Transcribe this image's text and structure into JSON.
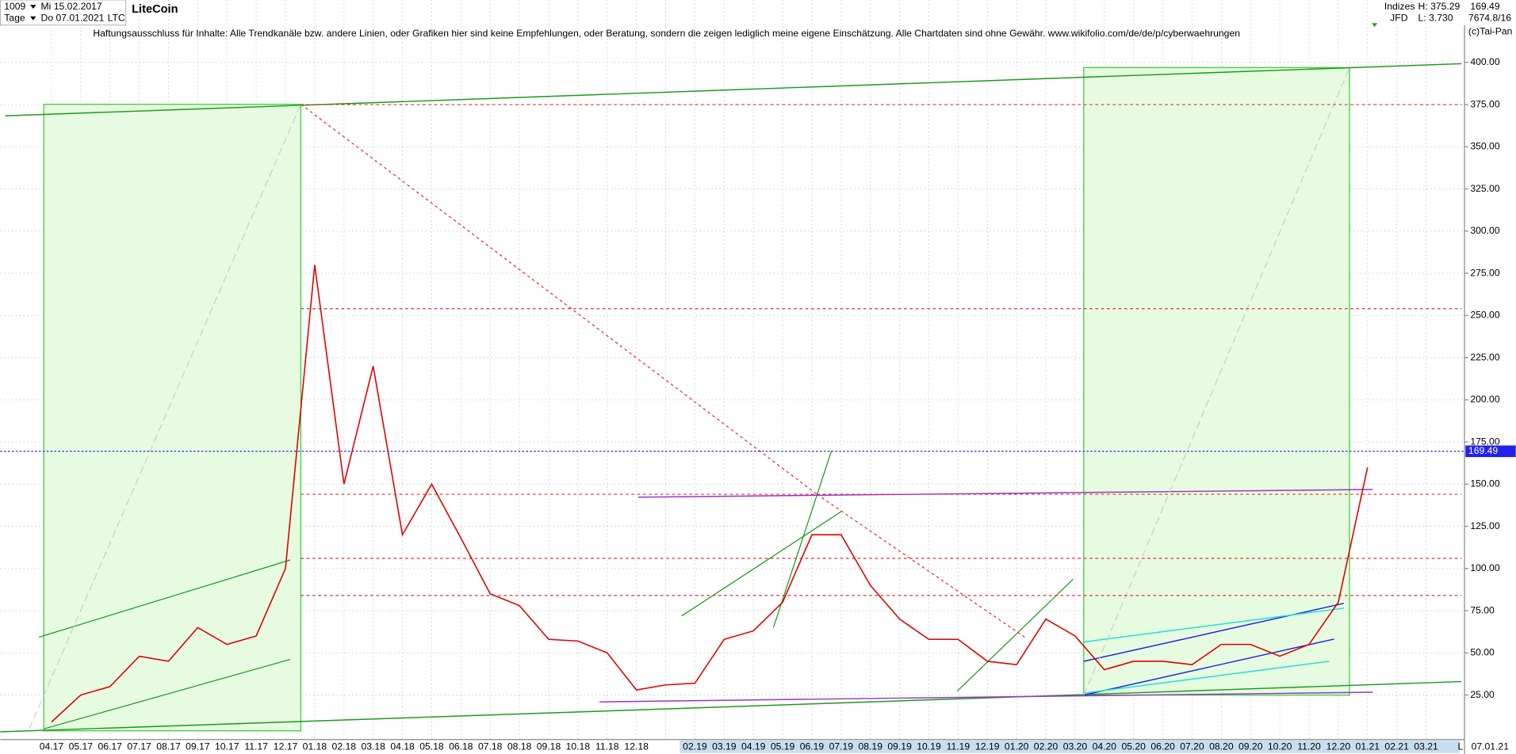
{
  "header": {
    "count": "1009",
    "period": "Tage",
    "start_date": "Mi 15.02.2017",
    "end_date": "Do 07.01.2021",
    "symbol": "LTC",
    "name": "LiteCoin",
    "disclaimer": "Haftungsausschluss für Inhalte: Alle Trendkanäle bzw. andere Linien, oder Grafiken hier sind keine Empfehlungen, oder Beratung, sondern die zeigen lediglich meine eigene Einschätzung. Alle Chartdaten sind ohne Gewähr.  www.wikifolio.com/de/de/p/cyberwaehrungen",
    "index_group": "Indizes",
    "source": "JFD",
    "high": "H: 375.29",
    "low": "L: 3.730",
    "last": "169.49",
    "info": "7674.8/16",
    "copyright": "(c)Tai-Pan",
    "scale_mode": "L",
    "last_date": "07.01.21"
  },
  "chart_data": {
    "type": "line",
    "categories": [
      "04.17",
      "05.17",
      "06.17",
      "07.17",
      "08.17",
      "09.17",
      "10.17",
      "11.17",
      "12.17",
      "01.18",
      "02.18",
      "03.18",
      "04.18",
      "05.18",
      "06.18",
      "07.18",
      "08.18",
      "09.18",
      "10.18",
      "11.18",
      "12.18",
      null,
      "02.19",
      "03.19",
      "04.19",
      "05.19",
      "06.19",
      "07.19",
      "08.19",
      "09.19",
      "10.19",
      "11.19",
      "12.19",
      "01.20",
      "02.20",
      "03.20",
      "04.20",
      "05.20",
      "06.20",
      "07.20",
      "08.20",
      "09.20",
      "10.20",
      "11.20",
      "12.20",
      "01.21",
      "02.21",
      "03.21"
    ],
    "series": [
      {
        "name": "LTC",
        "color": "#e00000",
        "values": [
          9,
          25,
          30,
          48,
          45,
          65,
          55,
          60,
          100,
          280,
          150,
          220,
          120,
          150,
          118,
          85,
          78,
          58,
          57,
          50,
          28,
          31,
          32,
          58,
          63,
          80,
          120,
          120,
          90,
          70,
          58,
          58,
          45,
          43,
          70,
          60,
          40,
          45,
          45,
          43,
          55,
          55,
          48,
          55,
          80,
          160,
          null,
          null
        ]
      }
    ],
    "last_value": 169.49,
    "levels": [
      375,
      254,
      144,
      106,
      84
    ],
    "ylim": [
      0,
      437
    ],
    "yticks": [
      {
        "value": 25,
        "label": "25.00"
      },
      {
        "value": 50,
        "label": "50.00"
      },
      {
        "value": 75,
        "label": "75.00"
      },
      {
        "value": 100,
        "label": "100.00"
      },
      {
        "value": 125,
        "label": "125.00"
      },
      {
        "value": 150,
        "label": "150.00"
      },
      {
        "value": 175,
        "label": "175.00"
      },
      {
        "value": 200,
        "label": "200.00"
      },
      {
        "value": 225,
        "label": "225.00"
      },
      {
        "value": 250,
        "label": "250.00"
      },
      {
        "value": 275,
        "label": "275.00"
      },
      {
        "value": 300,
        "label": "300.00"
      },
      {
        "value": 325,
        "label": "325.00"
      },
      {
        "value": 350,
        "label": "350.00"
      },
      {
        "value": 375,
        "label": "375.00"
      },
      {
        "value": 400,
        "label": "400.00"
      }
    ],
    "grid": true
  }
}
